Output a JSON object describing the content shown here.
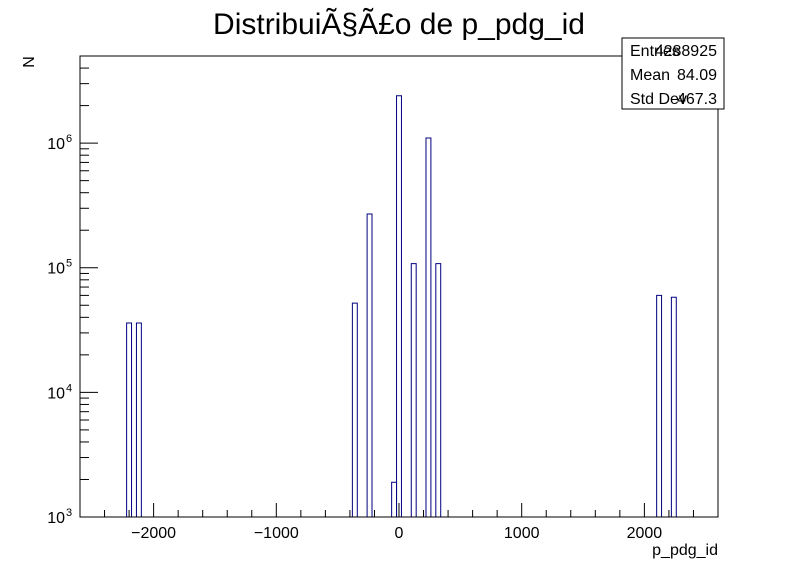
{
  "chart_data": {
    "type": "bar",
    "title": "DistribuiÃ§Ã£o de p_pdg_id",
    "xlabel": "p_pdg_id",
    "ylabel": "N",
    "xlim": [
      -2600,
      2600
    ],
    "ylim": [
      1000,
      5000000
    ],
    "y_scale": "log",
    "bin_width": 40,
    "x_ticks": [
      {
        "value": -2000,
        "label": "−2000"
      },
      {
        "value": -1000,
        "label": "−1000"
      },
      {
        "value": 0,
        "label": "0"
      },
      {
        "value": 1000,
        "label": "1000"
      },
      {
        "value": 2000,
        "label": "2000"
      }
    ],
    "y_ticks": [
      {
        "value": 1000,
        "base": "10",
        "exp": "3"
      },
      {
        "value": 10000,
        "base": "10",
        "exp": "4"
      },
      {
        "value": 100000,
        "base": "10",
        "exp": "5"
      },
      {
        "value": 1000000,
        "base": "10",
        "exp": "6"
      }
    ],
    "bins": [
      {
        "low": -2220,
        "high": -2180,
        "count": 36000
      },
      {
        "low": -2140,
        "high": -2100,
        "count": 36000
      },
      {
        "low": -380,
        "high": -340,
        "count": 52000
      },
      {
        "low": -260,
        "high": -220,
        "count": 270000
      },
      {
        "low": -60,
        "high": -20,
        "count": 1900
      },
      {
        "low": -20,
        "high": 20,
        "count": 2400000
      },
      {
        "low": 100,
        "high": 140,
        "count": 108000
      },
      {
        "low": 220,
        "high": 260,
        "count": 1100000
      },
      {
        "low": 300,
        "high": 340,
        "count": 108000
      },
      {
        "low": 2100,
        "high": 2140,
        "count": 60000
      },
      {
        "low": 2220,
        "high": 2260,
        "count": 58000
      }
    ],
    "stats": [
      {
        "label": "Entries",
        "value": "4288925"
      },
      {
        "label": "Mean",
        "value": "84.09"
      },
      {
        "label": "Std Dev",
        "value": "467.3"
      }
    ],
    "grid": false,
    "legend_placement": "top-right",
    "colors": {
      "histogram": "#000080",
      "axes": "#000000",
      "background": "#ffffff"
    }
  }
}
